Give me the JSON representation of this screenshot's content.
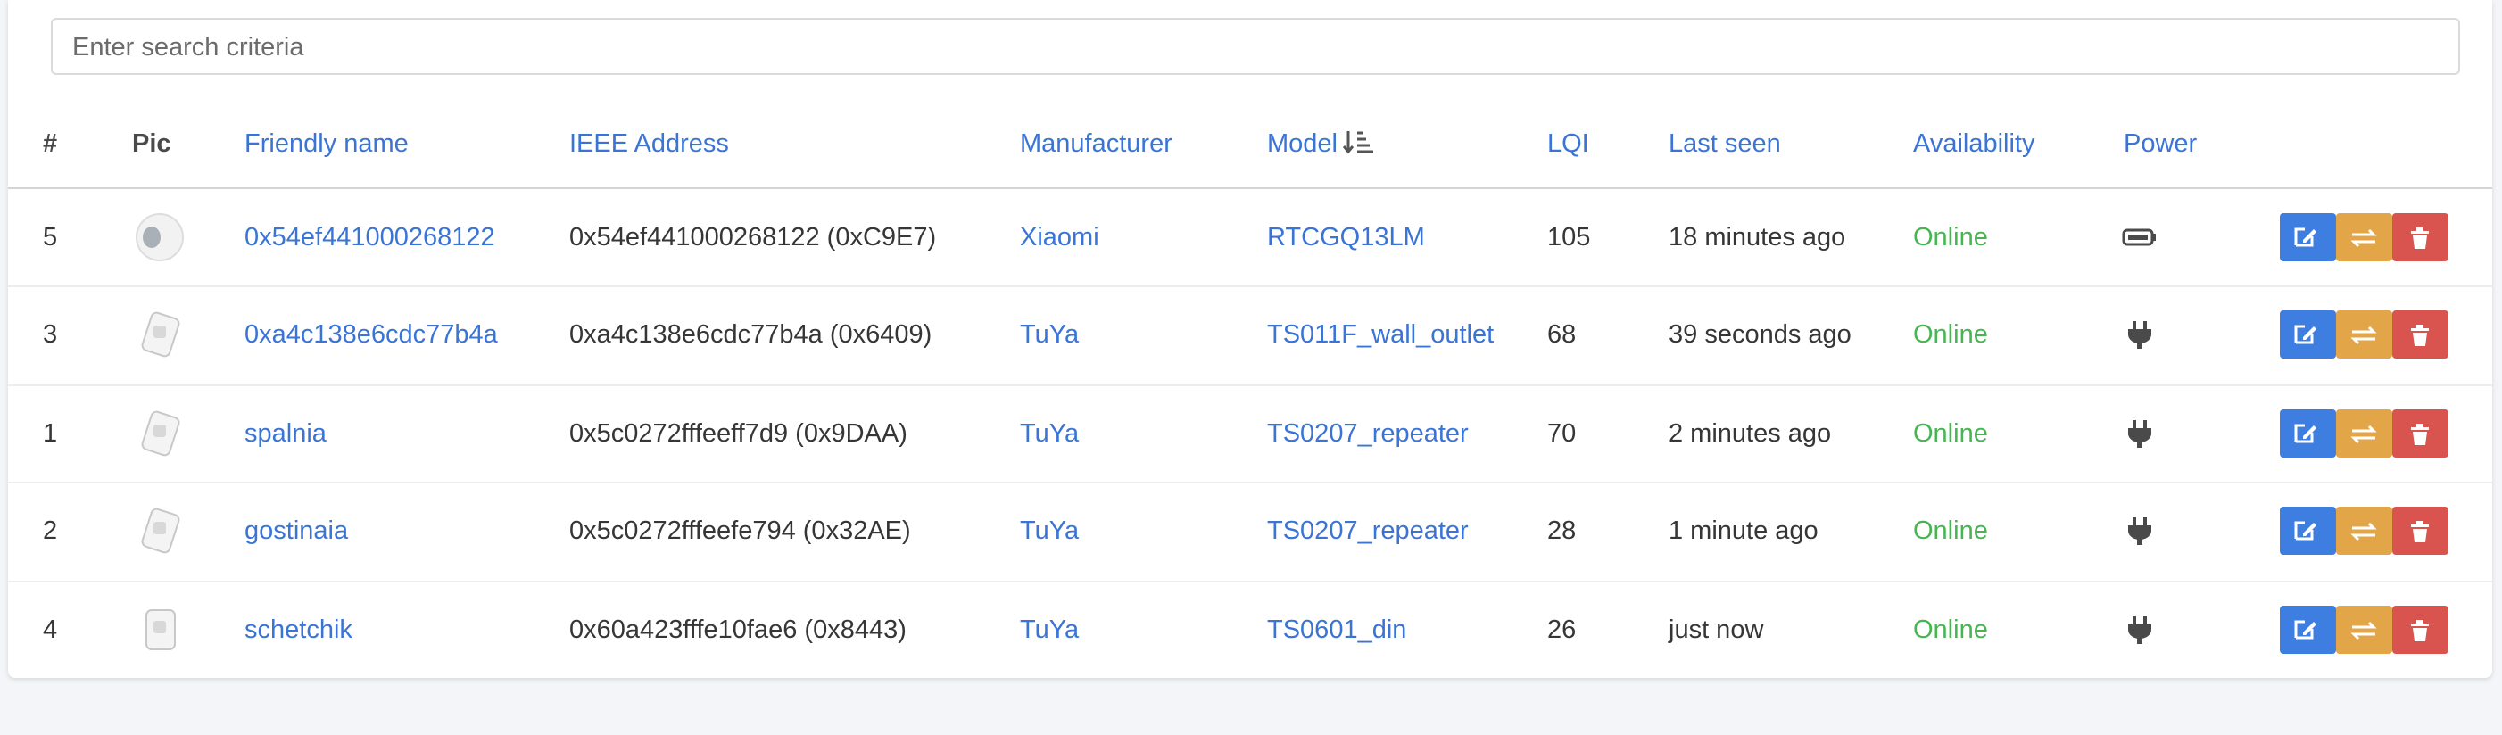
{
  "search": {
    "placeholder": "Enter search criteria"
  },
  "table": {
    "headers": [
      "#",
      "Pic",
      "Friendly name",
      "IEEE Address",
      "Manufacturer",
      "Model",
      "LQI",
      "Last seen",
      "Availability",
      "Power"
    ],
    "rows": [
      {
        "id": 5,
        "friendly_name": "0x54ef441000268122",
        "ieee_address": "0x54ef441000268122 (0xC9E7)",
        "manufacturer": "Xiaomi",
        "model": "RTCGQ13LM",
        "lqi": 105,
        "last_seen": "18 minutes ago",
        "availability": "Online"
      },
      {
        "id": 3,
        "friendly_name": "0xa4c138e6cdc77b4a",
        "ieee_address": "0xa4c138e6cdc77b4a (0x6409)",
        "manufacturer": "TuYa",
        "model": "TS011F_wall_outlet",
        "lqi": 68,
        "last_seen": "39 seconds ago",
        "availability": "Online"
      },
      {
        "id": 1,
        "friendly_name": "spalnia",
        "ieee_address": "0x5c0272fffeeff7d9 (0x9DAA)",
        "manufacturer": "TuYa",
        "model": "TS0207_repeater",
        "lqi": 70,
        "last_seen": "2 minutes ago",
        "availability": "Online"
      },
      {
        "id": 2,
        "friendly_name": "gostinaia",
        "ieee_address": "0x5c0272fffeefe794 (0x32AE)",
        "manufacturer": "TuYa",
        "model": "TS0207_repeater",
        "lqi": 28,
        "last_seen": "1 minute ago",
        "availability": "Online"
      },
      {
        "id": 4,
        "friendly_name": "schetchik",
        "ieee_address": "0x60a423fffe10fae6 (0x8443)",
        "manufacturer": "TuYa",
        "model": "TS0601_din",
        "lqi": 26,
        "last_seen": "just now",
        "availability": "Online"
      }
    ]
  }
}
